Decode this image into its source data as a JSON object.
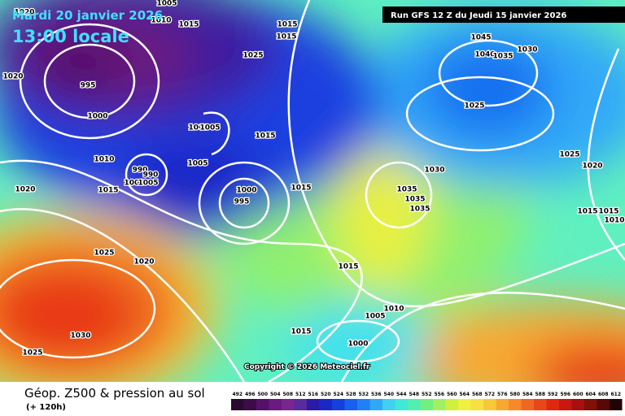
{
  "header": {
    "date": "Mardi 20 janvier 2026",
    "time": "13:00 locale",
    "run": "Run GFS 12 Z du Jeudi 15 janvier 2026"
  },
  "copyright": "Copyright © 2026 Meteociel.fr",
  "footer": {
    "title": "Géop. Z500 & pression au sol",
    "lead": "(+ 120h)"
  },
  "scale": {
    "values": [
      492,
      496,
      500,
      504,
      508,
      512,
      516,
      520,
      524,
      528,
      532,
      536,
      540,
      544,
      548,
      552,
      556,
      560,
      564,
      568,
      572,
      576,
      580,
      584,
      588,
      592,
      596,
      600,
      604,
      608,
      612
    ],
    "colors": [
      "#2a0a30",
      "#3c0c48",
      "#55106a",
      "#6a1a80",
      "#7a2690",
      "#5a2aa0",
      "#2a1aa8",
      "#1a28c8",
      "#1440e0",
      "#1860f0",
      "#2080f8",
      "#30a8f8",
      "#40d0f0",
      "#40e8d8",
      "#50f0b0",
      "#70f080",
      "#a0f060",
      "#d0f040",
      "#f0f040",
      "#f8e040",
      "#f8c838",
      "#f8a830",
      "#f88828",
      "#f06820",
      "#e84818",
      "#e02810",
      "#c81810",
      "#a81010",
      "#801008",
      "#580808",
      "#200404"
    ]
  },
  "isobar_labels": [
    "1020",
    "1010",
    "1005",
    "1015",
    "995",
    "1020",
    "1000",
    "1015",
    "1015",
    "1025",
    "1000",
    "1005",
    "1015",
    "1010",
    "990",
    "990",
    "1000",
    "1005",
    "1005",
    "1015",
    "1020",
    "1000",
    "995",
    "1015",
    "1045",
    "1040",
    "1035",
    "1030",
    "1025",
    "1030",
    "1035",
    "1035",
    "1035",
    "1025",
    "1020",
    "1015",
    "1015",
    "1010",
    "1025",
    "1020",
    "1015",
    "1010",
    "1005",
    "1015",
    "1000",
    "1030",
    "1025"
  ]
}
